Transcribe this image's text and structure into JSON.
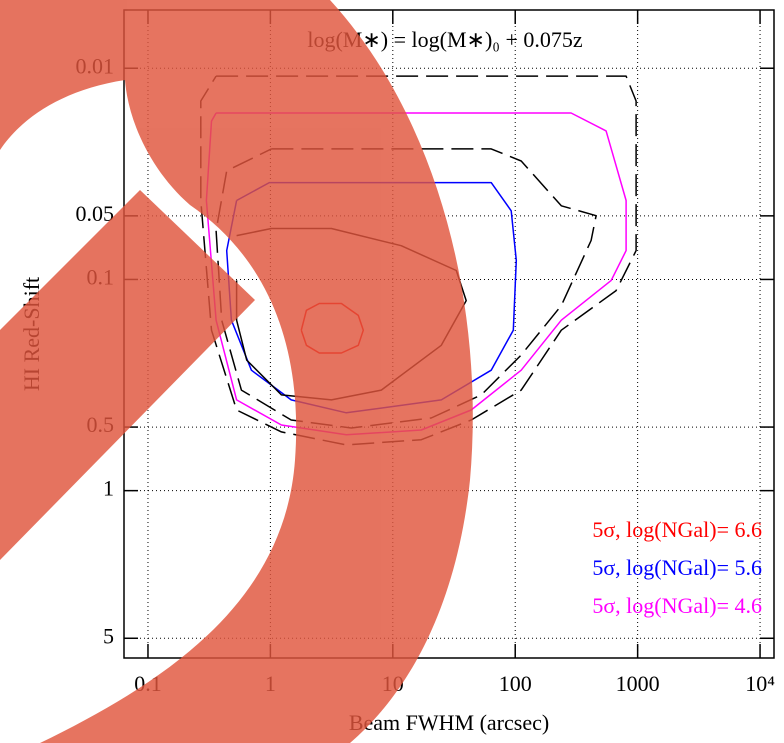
{
  "chart_data": {
    "type": "contour",
    "annotation": "log(M∗) = log(M∗)₀ + 0.075z",
    "xlabel": "Beam FWHM (arcsec)",
    "ylabel": "HI Red-Shift",
    "xscale": "log",
    "yscale": "log",
    "y_inverted": true,
    "grid": true,
    "legend": "lower right",
    "xlim": [
      0.0637,
      13000
    ],
    "ylim": [
      0.0053,
      6.2
    ],
    "xticks": [
      0.1,
      1,
      10,
      100,
      1000,
      {
        "value": 10000,
        "label": "10⁴"
      }
    ],
    "yticks": [
      0.01,
      0.05,
      0.1,
      0.5,
      1,
      5
    ],
    "series": [
      {
        "name": "5σ, log(NGal)= 6.6",
        "color": "#ff0000",
        "x": [
          1.79,
          1.97,
          2.51,
          3.8,
          5.23,
          5.74,
          5.23,
          3.8,
          2.51,
          1.97,
          1.79
        ],
        "y": [
          0.174,
          0.14,
          0.13,
          0.13,
          0.148,
          0.174,
          0.205,
          0.223,
          0.223,
          0.205,
          0.174
        ]
      },
      {
        "name": "5σ, log(NGal)= 5.6",
        "color": "#0000ff",
        "x": [
          0.53,
          0.98,
          63.7,
          92.8,
          102,
          96.4,
          63.7,
          24.9,
          4.17,
          1.48,
          0.7,
          0.48,
          0.44,
          0.53
        ],
        "y": [
          0.0423,
          0.0348,
          0.0348,
          0.0473,
          0.0813,
          0.174,
          0.269,
          0.372,
          0.428,
          0.372,
          0.269,
          0.156,
          0.073,
          0.0423
        ]
      },
      {
        "name": "5σ, log(NGal)= 4.6",
        "color": "#ff00ff",
        "x": [
          0.36,
          286,
          553,
          805,
          805,
          608,
          238,
          112,
          43.7,
          17.1,
          4.17,
          1.23,
          0.53,
          0.36,
          0.3,
          0.33,
          0.36
        ],
        "y": [
          0.0163,
          0.0163,
          0.0198,
          0.0423,
          0.073,
          0.101,
          0.156,
          0.269,
          0.415,
          0.516,
          0.544,
          0.489,
          0.372,
          0.156,
          0.0423,
          0.0178,
          0.0163
        ]
      },
      {
        "color": "#000000",
        "dashed": false,
        "x": [
          0.53,
          1.02,
          3.15,
          11.7,
          33.0,
          39.8,
          24.9,
          8.05,
          3.15,
          1.23,
          0.64,
          0.53,
          0.53
        ],
        "y": [
          0.062,
          0.0574,
          0.0574,
          0.0692,
          0.0907,
          0.126,
          0.205,
          0.334,
          0.372,
          0.352,
          0.241,
          0.156,
          0.101
        ]
      },
      {
        "color": "#000000",
        "dashed": true,
        "x": [
          1.02,
          63.7,
          112,
          238,
          458,
          417,
          238,
          112,
          52.8,
          20.6,
          4.58,
          1.48,
          0.58,
          0.4,
          0.36,
          0.44,
          1.02
        ],
        "y": [
          0.0241,
          0.0241,
          0.0275,
          0.0448,
          0.0499,
          0.0654,
          0.133,
          0.228,
          0.352,
          0.453,
          0.505,
          0.463,
          0.334,
          0.156,
          0.0587,
          0.0306,
          0.0241
        ]
      },
      {
        "color": "#000000",
        "dashed": true,
        "x": [
          0.36,
          805,
          972,
          972,
          667,
          238,
          112,
          43.7,
          17.1,
          4.17,
          1.23,
          0.53,
          0.33,
          0.27,
          0.27,
          0.36
        ],
        "y": [
          0.0109,
          0.0109,
          0.0143,
          0.073,
          0.113,
          0.174,
          0.334,
          0.463,
          0.574,
          0.607,
          0.527,
          0.415,
          0.174,
          0.0423,
          0.0143,
          0.0109
        ]
      }
    ]
  }
}
